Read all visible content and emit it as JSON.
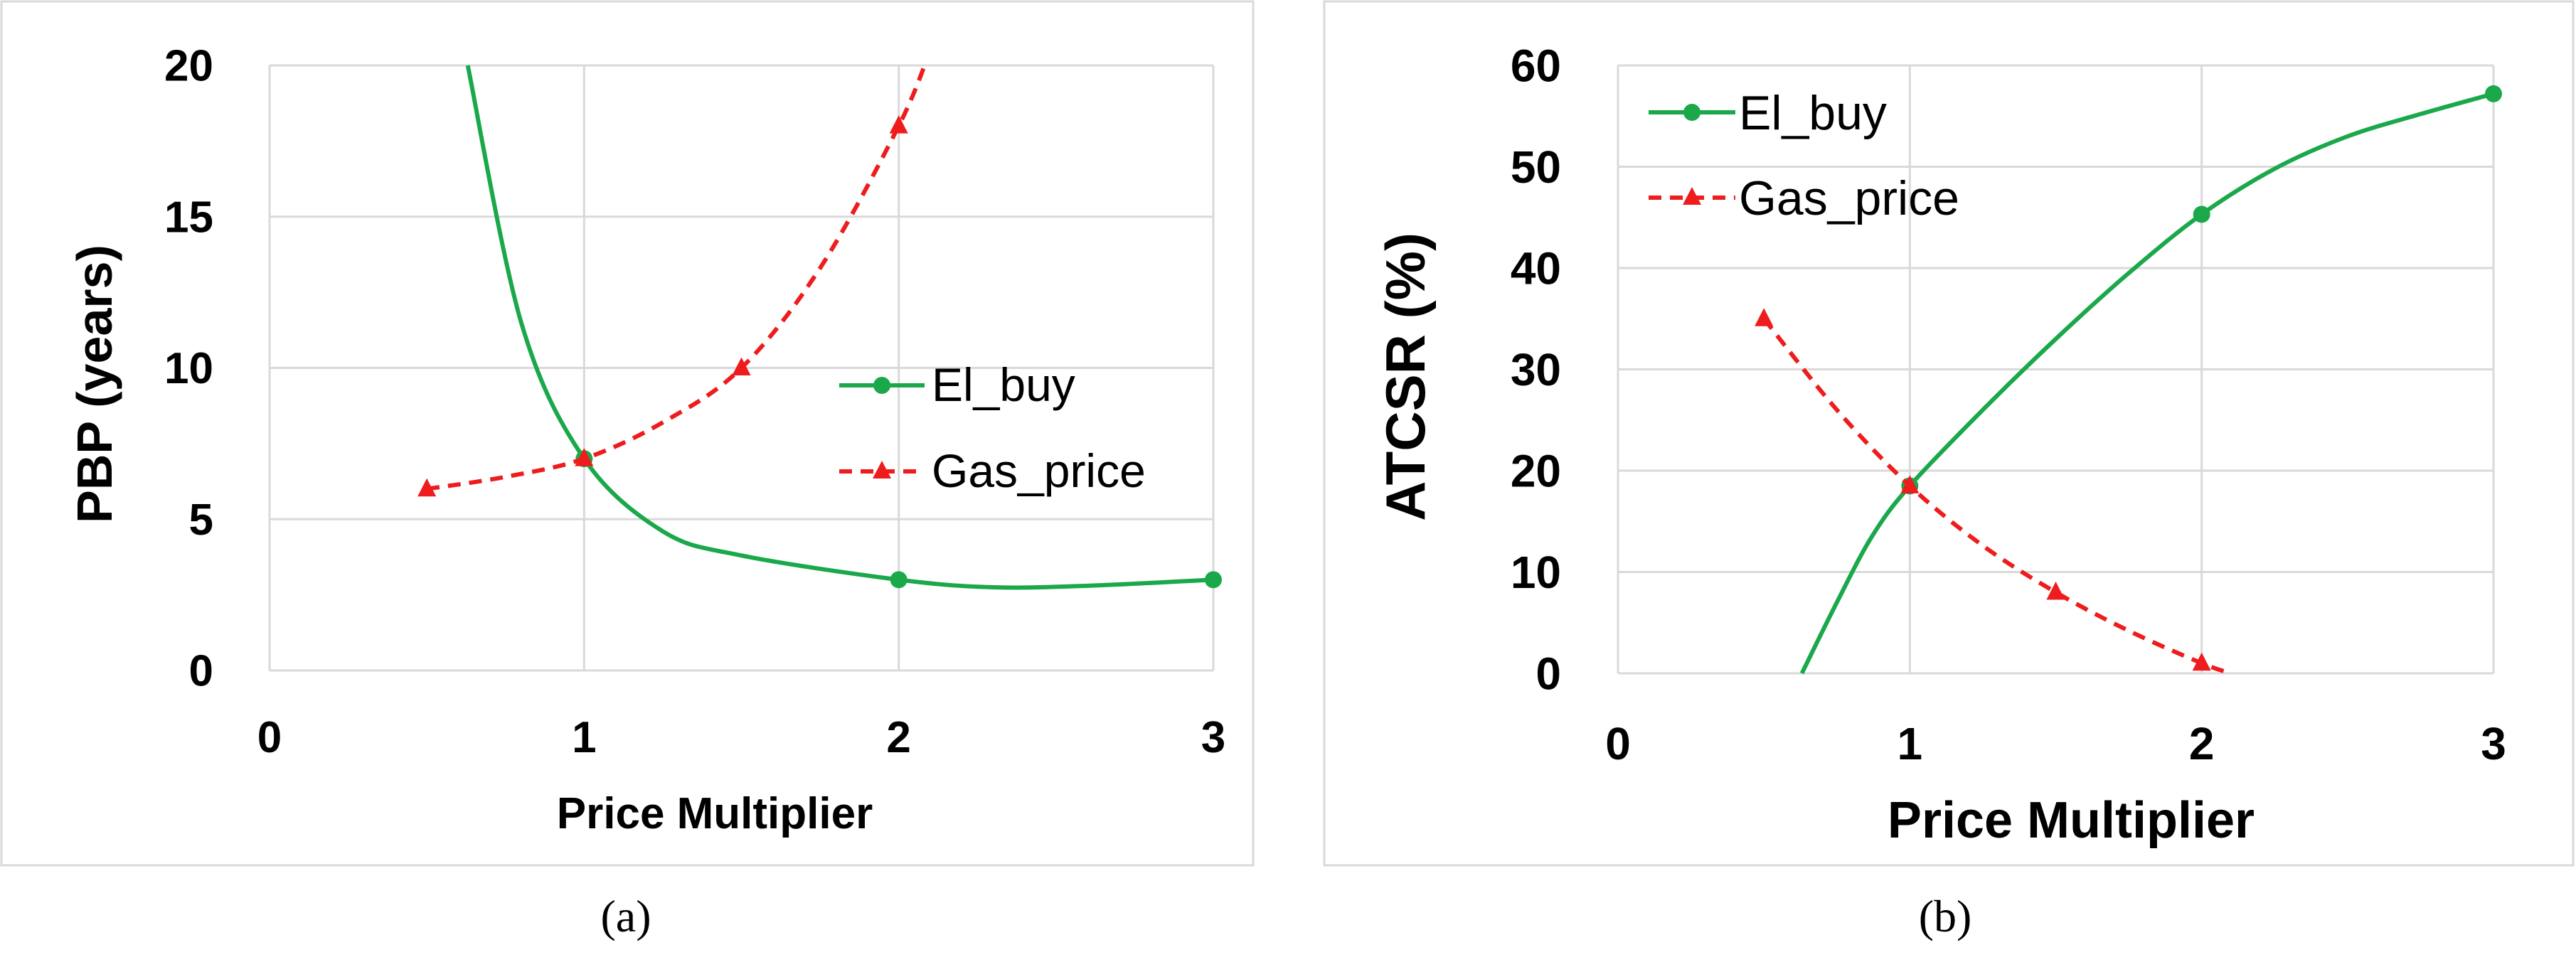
{
  "figure": {
    "panels": [
      {
        "label": "(a)",
        "xlabel": "Price Multiplier",
        "ylabel": "PBP (years)",
        "xlim": [
          0,
          3
        ],
        "ylim": [
          0,
          20
        ],
        "xticks": [
          0,
          1,
          2,
          3
        ],
        "yticks": [
          0,
          5,
          10,
          15,
          20
        ]
      },
      {
        "label": "(b)",
        "xlabel": "Price Multiplier",
        "ylabel": "ATCSR (%)",
        "xlim": [
          0,
          3
        ],
        "ylim": [
          0,
          60
        ],
        "xticks": [
          0,
          1,
          2,
          3
        ],
        "yticks": [
          0,
          10,
          20,
          30,
          40,
          50,
          60
        ]
      }
    ]
  },
  "chart_data": [
    {
      "type": "line",
      "title": "",
      "xlabel": "Price Multiplier",
      "ylabel": "PBP (years)",
      "xlim": [
        0,
        3
      ],
      "ylim": [
        0,
        20
      ],
      "grid": true,
      "legend": "right",
      "series": [
        {
          "name": "El_buy",
          "color": "#1aa84b",
          "style": "solid",
          "marker": "circle",
          "x": [
            1,
            2,
            3
          ],
          "y": [
            7,
            3,
            3
          ],
          "curve": [
            [
              0.63,
              20
            ],
            [
              0.8,
              11.5
            ],
            [
              1,
              7
            ],
            [
              1.25,
              4.6
            ],
            [
              1.5,
              3.8
            ],
            [
              2,
              3
            ],
            [
              2.3,
              2.75
            ],
            [
              2.6,
              2.8
            ],
            [
              3,
              3
            ]
          ]
        },
        {
          "name": "Gas_price",
          "color": "#ee1c1c",
          "style": "dashed",
          "marker": "triangle",
          "x": [
            0.5,
            1,
            1.5,
            2
          ],
          "y": [
            6,
            7,
            10,
            18
          ],
          "curve": [
            [
              0.5,
              6
            ],
            [
              0.75,
              6.4
            ],
            [
              1,
              7
            ],
            [
              1.25,
              8.2
            ],
            [
              1.5,
              10
            ],
            [
              1.75,
              13.3
            ],
            [
              2,
              18
            ],
            [
              2.1,
              20.5
            ]
          ]
        }
      ]
    },
    {
      "type": "line",
      "title": "",
      "xlabel": "Price Multiplier",
      "ylabel": "ATCSR (%)",
      "xlim": [
        0,
        3
      ],
      "ylim": [
        0,
        60
      ],
      "grid": true,
      "legend": "top-left",
      "series": [
        {
          "name": "El_buy",
          "color": "#1aa84b",
          "style": "solid",
          "marker": "circle",
          "x": [
            1,
            2,
            3
          ],
          "y": [
            18.5,
            45.3,
            57.2
          ],
          "curve": [
            [
              0.63,
              0
            ],
            [
              0.75,
              7
            ],
            [
              0.87,
              13.5
            ],
            [
              1,
              18.5
            ],
            [
              1.25,
              26
            ],
            [
              1.5,
              33
            ],
            [
              1.75,
              39.5
            ],
            [
              2,
              45.3
            ],
            [
              2.25,
              49.8
            ],
            [
              2.5,
              53
            ],
            [
              2.75,
              55.2
            ],
            [
              3,
              57.2
            ]
          ]
        },
        {
          "name": "Gas_price",
          "color": "#ee1c1c",
          "style": "dashed",
          "marker": "triangle",
          "x": [
            0.5,
            1,
            1.5,
            2
          ],
          "y": [
            35,
            18.5,
            8,
            1
          ],
          "curve": [
            [
              0.5,
              35
            ],
            [
              0.75,
              26
            ],
            [
              1,
              18.5
            ],
            [
              1.25,
              12.6
            ],
            [
              1.5,
              8
            ],
            [
              1.75,
              4.2
            ],
            [
              2,
              1
            ],
            [
              2.1,
              0
            ]
          ]
        }
      ]
    }
  ]
}
